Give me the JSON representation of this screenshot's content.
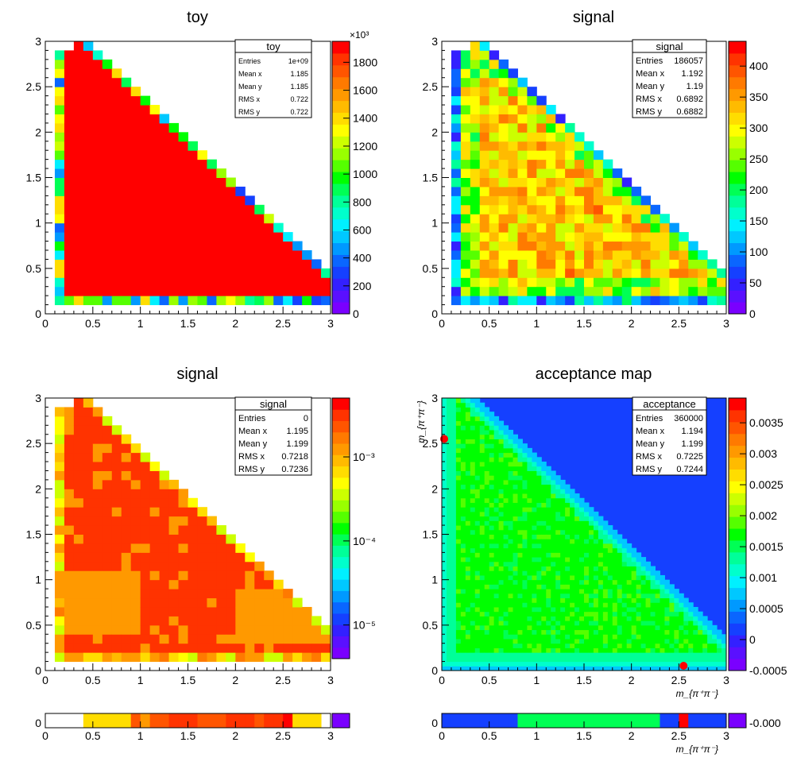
{
  "palette": [
    "#7a00ff",
    "#5a10ff",
    "#3320ff",
    "#1540ff",
    "#0a66ff",
    "#0099ff",
    "#00c8ff",
    "#00f0ff",
    "#00ffcc",
    "#00ff99",
    "#00ff55",
    "#00ff00",
    "#55ff00",
    "#99ff00",
    "#ccff00",
    "#ffff00",
    "#ffdd00",
    "#ffbb00",
    "#ff9900",
    "#ff7a00",
    "#ff5500",
    "#ff3300",
    "#ff0000"
  ],
  "chart_data": [
    {
      "id": "toy",
      "type": "heatmap",
      "title": "toy",
      "x_range": [
        0,
        3
      ],
      "y_range": [
        0,
        3
      ],
      "x_ticks": [
        "0",
        "0.5",
        "1",
        "1.5",
        "2",
        "2.5",
        "3"
      ],
      "y_ticks": [
        "0",
        "0.5",
        "1",
        "1.5",
        "2",
        "2.5",
        "3"
      ],
      "colorbar": {
        "scale": "linear",
        "min": 0,
        "max": 1950,
        "exponent_label": "×10³",
        "ticks": [
          0,
          200,
          400,
          600,
          800,
          1000,
          1200,
          1400,
          1600,
          1800
        ],
        "tick_labels": [
          "0",
          "200",
          "400",
          "600",
          "800",
          "1000",
          "1200",
          "1400",
          "1600",
          "1800"
        ]
      },
      "stats": {
        "title": "toy",
        "rows": [
          [
            "Entries",
            "1e+09"
          ],
          [
            "Mean x",
            "1.185"
          ],
          [
            "Mean y",
            "1.185"
          ],
          [
            "RMS x",
            "0.722"
          ],
          [
            "RMS y",
            "0.722"
          ]
        ]
      },
      "xlabel": "",
      "ylabel": ""
    },
    {
      "id": "signal",
      "type": "heatmap",
      "title": "signal",
      "x_range": [
        0,
        3
      ],
      "y_range": [
        0,
        3
      ],
      "x_ticks": [
        "0",
        "0.5",
        "1",
        "1.5",
        "2",
        "2.5",
        "3"
      ],
      "y_ticks": [
        "0",
        "0.5",
        "1",
        "1.5",
        "2",
        "2.5",
        "3"
      ],
      "colorbar": {
        "scale": "linear",
        "min": 0,
        "max": 440,
        "ticks": [
          0,
          50,
          100,
          150,
          200,
          250,
          300,
          350,
          400
        ],
        "tick_labels": [
          "0",
          "50",
          "100",
          "150",
          "200",
          "250",
          "300",
          "350",
          "400"
        ]
      },
      "stats": {
        "title": "signal",
        "rows": [
          [
            "Entries",
            "186057"
          ],
          [
            "Mean x",
            "1.192"
          ],
          [
            "Mean y",
            "1.19"
          ],
          [
            "RMS x",
            "0.6892"
          ],
          [
            "RMS y",
            "0.6882"
          ]
        ]
      },
      "xlabel": "",
      "ylabel": ""
    },
    {
      "id": "signal_eff",
      "type": "heatmap",
      "title": "signal",
      "x_range": [
        0,
        3
      ],
      "y_range": [
        0,
        3
      ],
      "x_ticks": [
        "0",
        "0.5",
        "1",
        "1.5",
        "2",
        "2.5",
        "3"
      ],
      "y_ticks": [
        "0",
        "0.5",
        "1",
        "1.5",
        "2",
        "2.5",
        "3"
      ],
      "colorbar": {
        "scale": "log",
        "min_exp": -5.4,
        "max_exp": -2.3,
        "tick_exps": [
          -5,
          -4,
          -3
        ],
        "tick_labels": [
          "10⁻⁵",
          "10⁻⁴",
          "10⁻³"
        ]
      },
      "stats": {
        "title": "signal",
        "rows": [
          [
            "Entries",
            "0"
          ],
          [
            "Mean x",
            "1.195"
          ],
          [
            "Mean y",
            "1.199"
          ],
          [
            "RMS x",
            "0.7218"
          ],
          [
            "RMS y",
            "0.7236"
          ]
        ]
      },
      "xlabel": "",
      "ylabel": ""
    },
    {
      "id": "acceptance",
      "type": "heatmap",
      "title": "acceptance map",
      "x_range": [
        0,
        3
      ],
      "y_range": [
        0,
        3
      ],
      "x_ticks": [
        "0",
        "0.5",
        "1",
        "1.5",
        "2",
        "2.5",
        "3"
      ],
      "y_ticks": [
        "0",
        "0.5",
        "1",
        "1.5",
        "2",
        "2.5",
        "3"
      ],
      "colorbar": {
        "scale": "linear",
        "min": -0.0005,
        "max": 0.0039,
        "ticks": [
          -0.0005,
          0,
          0.0005,
          0.001,
          0.0015,
          0.002,
          0.0025,
          0.003,
          0.0035
        ],
        "tick_labels": [
          "-0.0005",
          "0",
          "0.0005",
          "0.001",
          "0.0015",
          "0.002",
          "0.0025",
          "0.003",
          "0.0035"
        ]
      },
      "stats": {
        "title": "acceptance",
        "rows": [
          [
            "Entries",
            "360000"
          ],
          [
            "Mean x",
            "1.194"
          ],
          [
            "Mean y",
            "1.199"
          ],
          [
            "RMS x",
            "0.7225"
          ],
          [
            "RMS y",
            "0.7244"
          ]
        ]
      },
      "xlabel": "m_{π⁺π⁻}",
      "ylabel": "m_{π⁺π⁻}"
    }
  ],
  "projections": [
    {
      "id": "proj_left",
      "y_tick": "0",
      "x_ticks": [
        "0",
        "0.5",
        "1",
        "1.5",
        "2",
        "2.5",
        "3"
      ],
      "xlabel": "",
      "colorbar_label": ""
    },
    {
      "id": "proj_right",
      "y_tick": "0",
      "x_ticks": [
        "0",
        "0.5",
        "1",
        "1.5",
        "2",
        "2.5",
        "3"
      ],
      "xlabel": "m_{π⁺π⁻}",
      "colorbar_label": "-0.000"
    }
  ]
}
